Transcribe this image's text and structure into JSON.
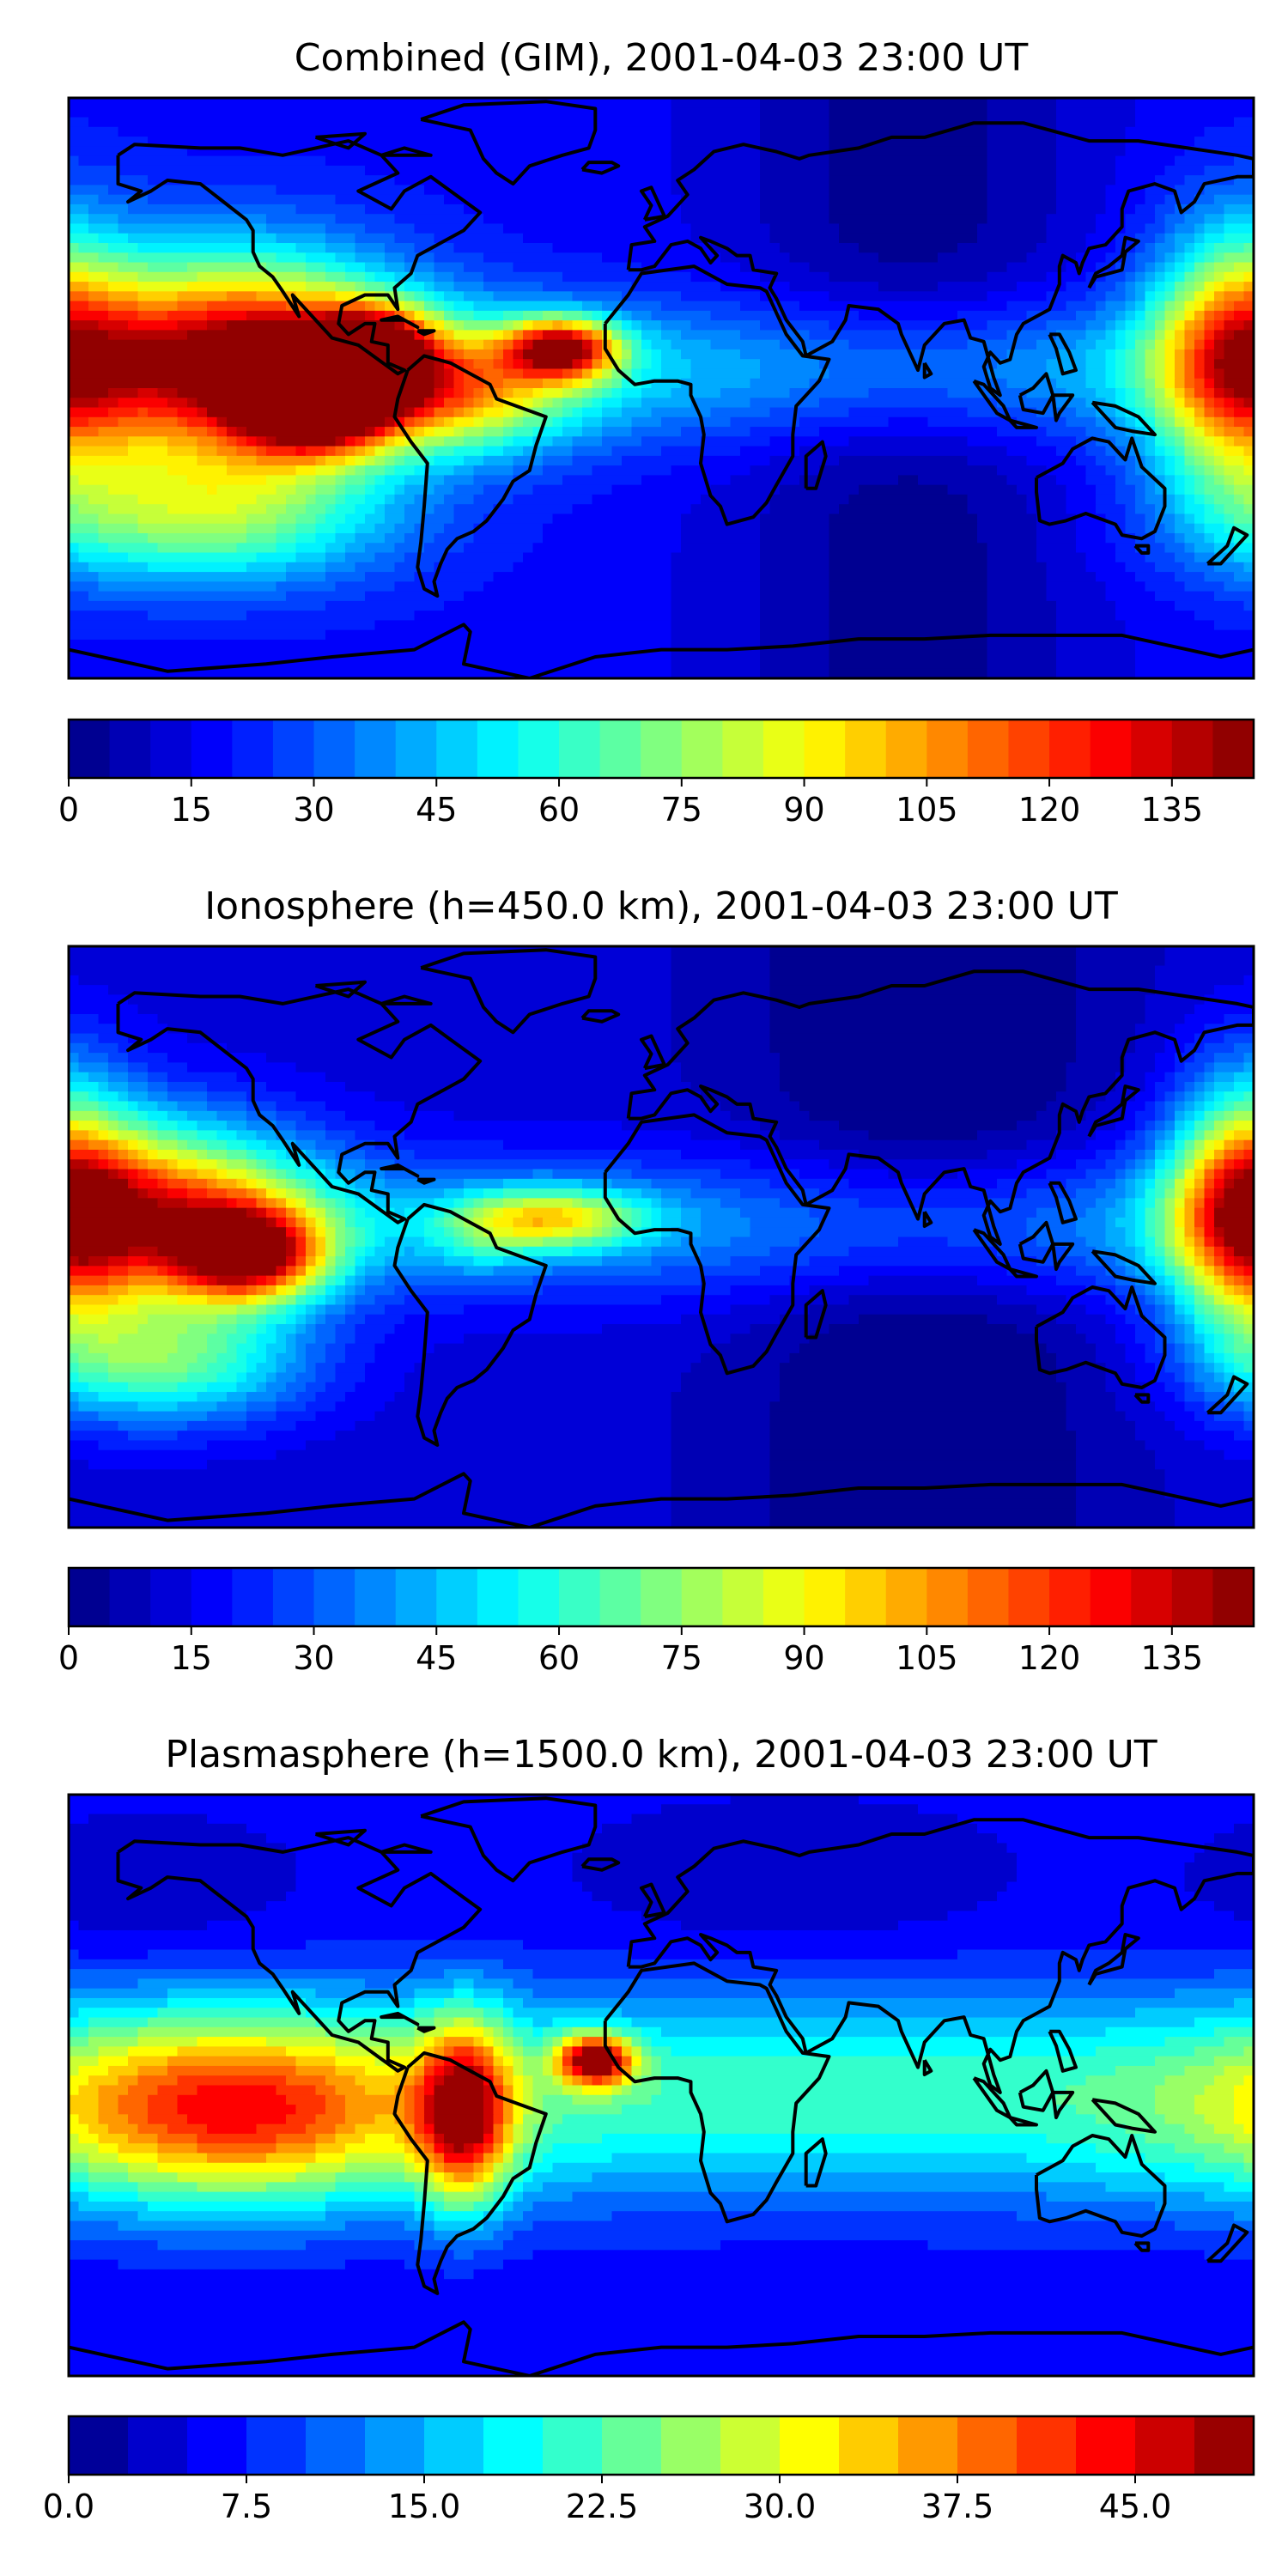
{
  "figure": {
    "panels": [
      {
        "id": "combined",
        "title": "Combined (GIM), 2001-04-03 23:00 UT",
        "colorbar": {
          "vmin": 0,
          "vmax": 145,
          "levels": 29,
          "ticks": [
            "0",
            "15",
            "30",
            "45",
            "60",
            "75",
            "90",
            "105",
            "120",
            "135"
          ],
          "tick_values": [
            0,
            15,
            30,
            45,
            60,
            75,
            90,
            105,
            120,
            135
          ]
        },
        "hotspots": [
          {
            "lon": -128,
            "lat": 12,
            "v": 125,
            "sx": 34,
            "sy": 20
          },
          {
            "lon": -105,
            "lat": 0,
            "v": 130,
            "sx": 16,
            "sy": 10
          },
          {
            "lon": -88,
            "lat": 14,
            "v": 100,
            "sx": 12,
            "sy": 8
          },
          {
            "lon": -30,
            "lat": 14,
            "v": 115,
            "sx": 12,
            "sy": 6
          },
          {
            "lon": -62,
            "lat": 2,
            "v": 75,
            "sx": 25,
            "sy": 12
          },
          {
            "lon": 175,
            "lat": 12,
            "v": 95,
            "sx": 18,
            "sy": 25
          },
          {
            "lon": -140,
            "lat": -32,
            "v": 75,
            "sx": 40,
            "sy": 14
          }
        ],
        "base": {
          "floor": 18,
          "belt_amp": 30,
          "belt_lat": 8,
          "belt_width": 20,
          "night_lon": 75,
          "night_width": 55,
          "night_depth": 16
        }
      },
      {
        "id": "ionosphere",
        "title": "Ionosphere  (h=450.0 km), 2001-04-03 23:00 UT",
        "colorbar": {
          "vmin": 0,
          "vmax": 145,
          "levels": 29,
          "ticks": [
            "0",
            "15",
            "30",
            "45",
            "60",
            "75",
            "90",
            "105",
            "120",
            "135"
          ],
          "tick_values": [
            0,
            15,
            30,
            45,
            60,
            75,
            90,
            105,
            120,
            135
          ]
        },
        "hotspots": [
          {
            "lon": -150,
            "lat": 10,
            "v": 95,
            "sx": 30,
            "sy": 18
          },
          {
            "lon": -125,
            "lat": -2,
            "v": 105,
            "sx": 16,
            "sy": 9
          },
          {
            "lon": -35,
            "lat": 8,
            "v": 72,
            "sx": 20,
            "sy": 6
          },
          {
            "lon": 178,
            "lat": 12,
            "v": 92,
            "sx": 16,
            "sy": 25
          },
          {
            "lon": -55,
            "lat": 0,
            "v": 25,
            "sx": 10,
            "sy": 6
          },
          {
            "lon": -150,
            "lat": -32,
            "v": 65,
            "sx": 30,
            "sy": 12
          }
        ],
        "base": {
          "floor": 12,
          "belt_amp": 28,
          "belt_lat": 6,
          "belt_width": 20,
          "night_lon": 80,
          "night_width": 55,
          "night_depth": 14
        }
      },
      {
        "id": "plasmasphere",
        "title": "Plasmasphere (h=1500.0 km), 2001-04-03 23:00 UT",
        "colorbar": {
          "vmin": 0,
          "vmax": 50,
          "levels": 20,
          "ticks": [
            "0.0",
            "7.5",
            "15.0",
            "22.5",
            "30.0",
            "37.5",
            "45.0"
          ],
          "tick_values": [
            0,
            7.5,
            15,
            22.5,
            30,
            37.5,
            45
          ]
        },
        "hotspots": [
          {
            "lon": -60,
            "lat": -5,
            "v": 34,
            "sx": 10,
            "sy": 18
          },
          {
            "lon": -20,
            "lat": 10,
            "v": 40,
            "sx": 8,
            "sy": 5
          },
          {
            "lon": -130,
            "lat": -5,
            "v": 28,
            "sx": 40,
            "sy": 18
          },
          {
            "lon": 140,
            "lat": -22,
            "v": 6,
            "sx": 14,
            "sy": 8
          },
          {
            "lon": -155,
            "lat": 48,
            "v": 3,
            "sx": 30,
            "sy": 10
          },
          {
            "lon": 40,
            "lat": 50,
            "v": 3,
            "sx": 40,
            "sy": 10
          }
        ],
        "base": {
          "floor": 5,
          "belt_amp": 17,
          "belt_lat": 0,
          "belt_width": 30,
          "night_lon": 120,
          "night_width": 70,
          "night_depth": 0
        }
      }
    ]
  }
}
